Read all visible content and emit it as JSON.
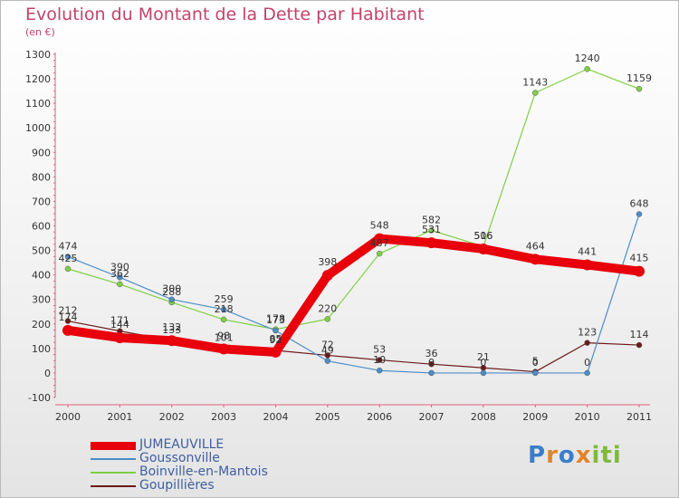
{
  "header": {
    "title": "Evolution du Montant de la Dette par Habitant",
    "subtitle": "(en €)"
  },
  "logo": {
    "letters": [
      "P",
      "r",
      "o",
      "x",
      "i",
      "t",
      "i"
    ],
    "colors": [
      "#3a7dc9",
      "#e2842a",
      "#3a7dc9",
      "#e2842a",
      "#7fb93a",
      "#7fb93a",
      "#7fb93a"
    ]
  },
  "chart_data": {
    "type": "line",
    "x": [
      "2000",
      "2001",
      "2002",
      "2003",
      "2004",
      "2005",
      "2006",
      "2007",
      "2008",
      "2009",
      "2010",
      "2011"
    ],
    "ylim": [
      -100,
      1300
    ],
    "yticks": [
      -100,
      0,
      100,
      200,
      300,
      400,
      500,
      600,
      700,
      800,
      900,
      1000,
      1100,
      1200,
      1300
    ],
    "grid": false,
    "legend_position": "bottom-left",
    "series": [
      {
        "name": "JUMEAUVILLE",
        "color": "#e8000b",
        "values": [
          174,
          144,
          132,
          98,
          85,
          398,
          548,
          531,
          506,
          464,
          441,
          415
        ]
      },
      {
        "name": "Goussonville",
        "color": "#4c8dc8",
        "values": [
          474,
          390,
          300,
          259,
          173,
          49,
          10,
          0,
          0,
          0,
          0,
          648
        ]
      },
      {
        "name": "Boinville-en-Mantois",
        "color": "#7fd044",
        "values": [
          425,
          362,
          288,
          218,
          178,
          220,
          487,
          582,
          516,
          1143,
          1240,
          1159
        ]
      },
      {
        "name": "Goupillières",
        "color": "#6b1a1a",
        "values": [
          212,
          171,
          133,
          101,
          92,
          72,
          53,
          36,
          21,
          5,
          123,
          114
        ]
      }
    ]
  }
}
